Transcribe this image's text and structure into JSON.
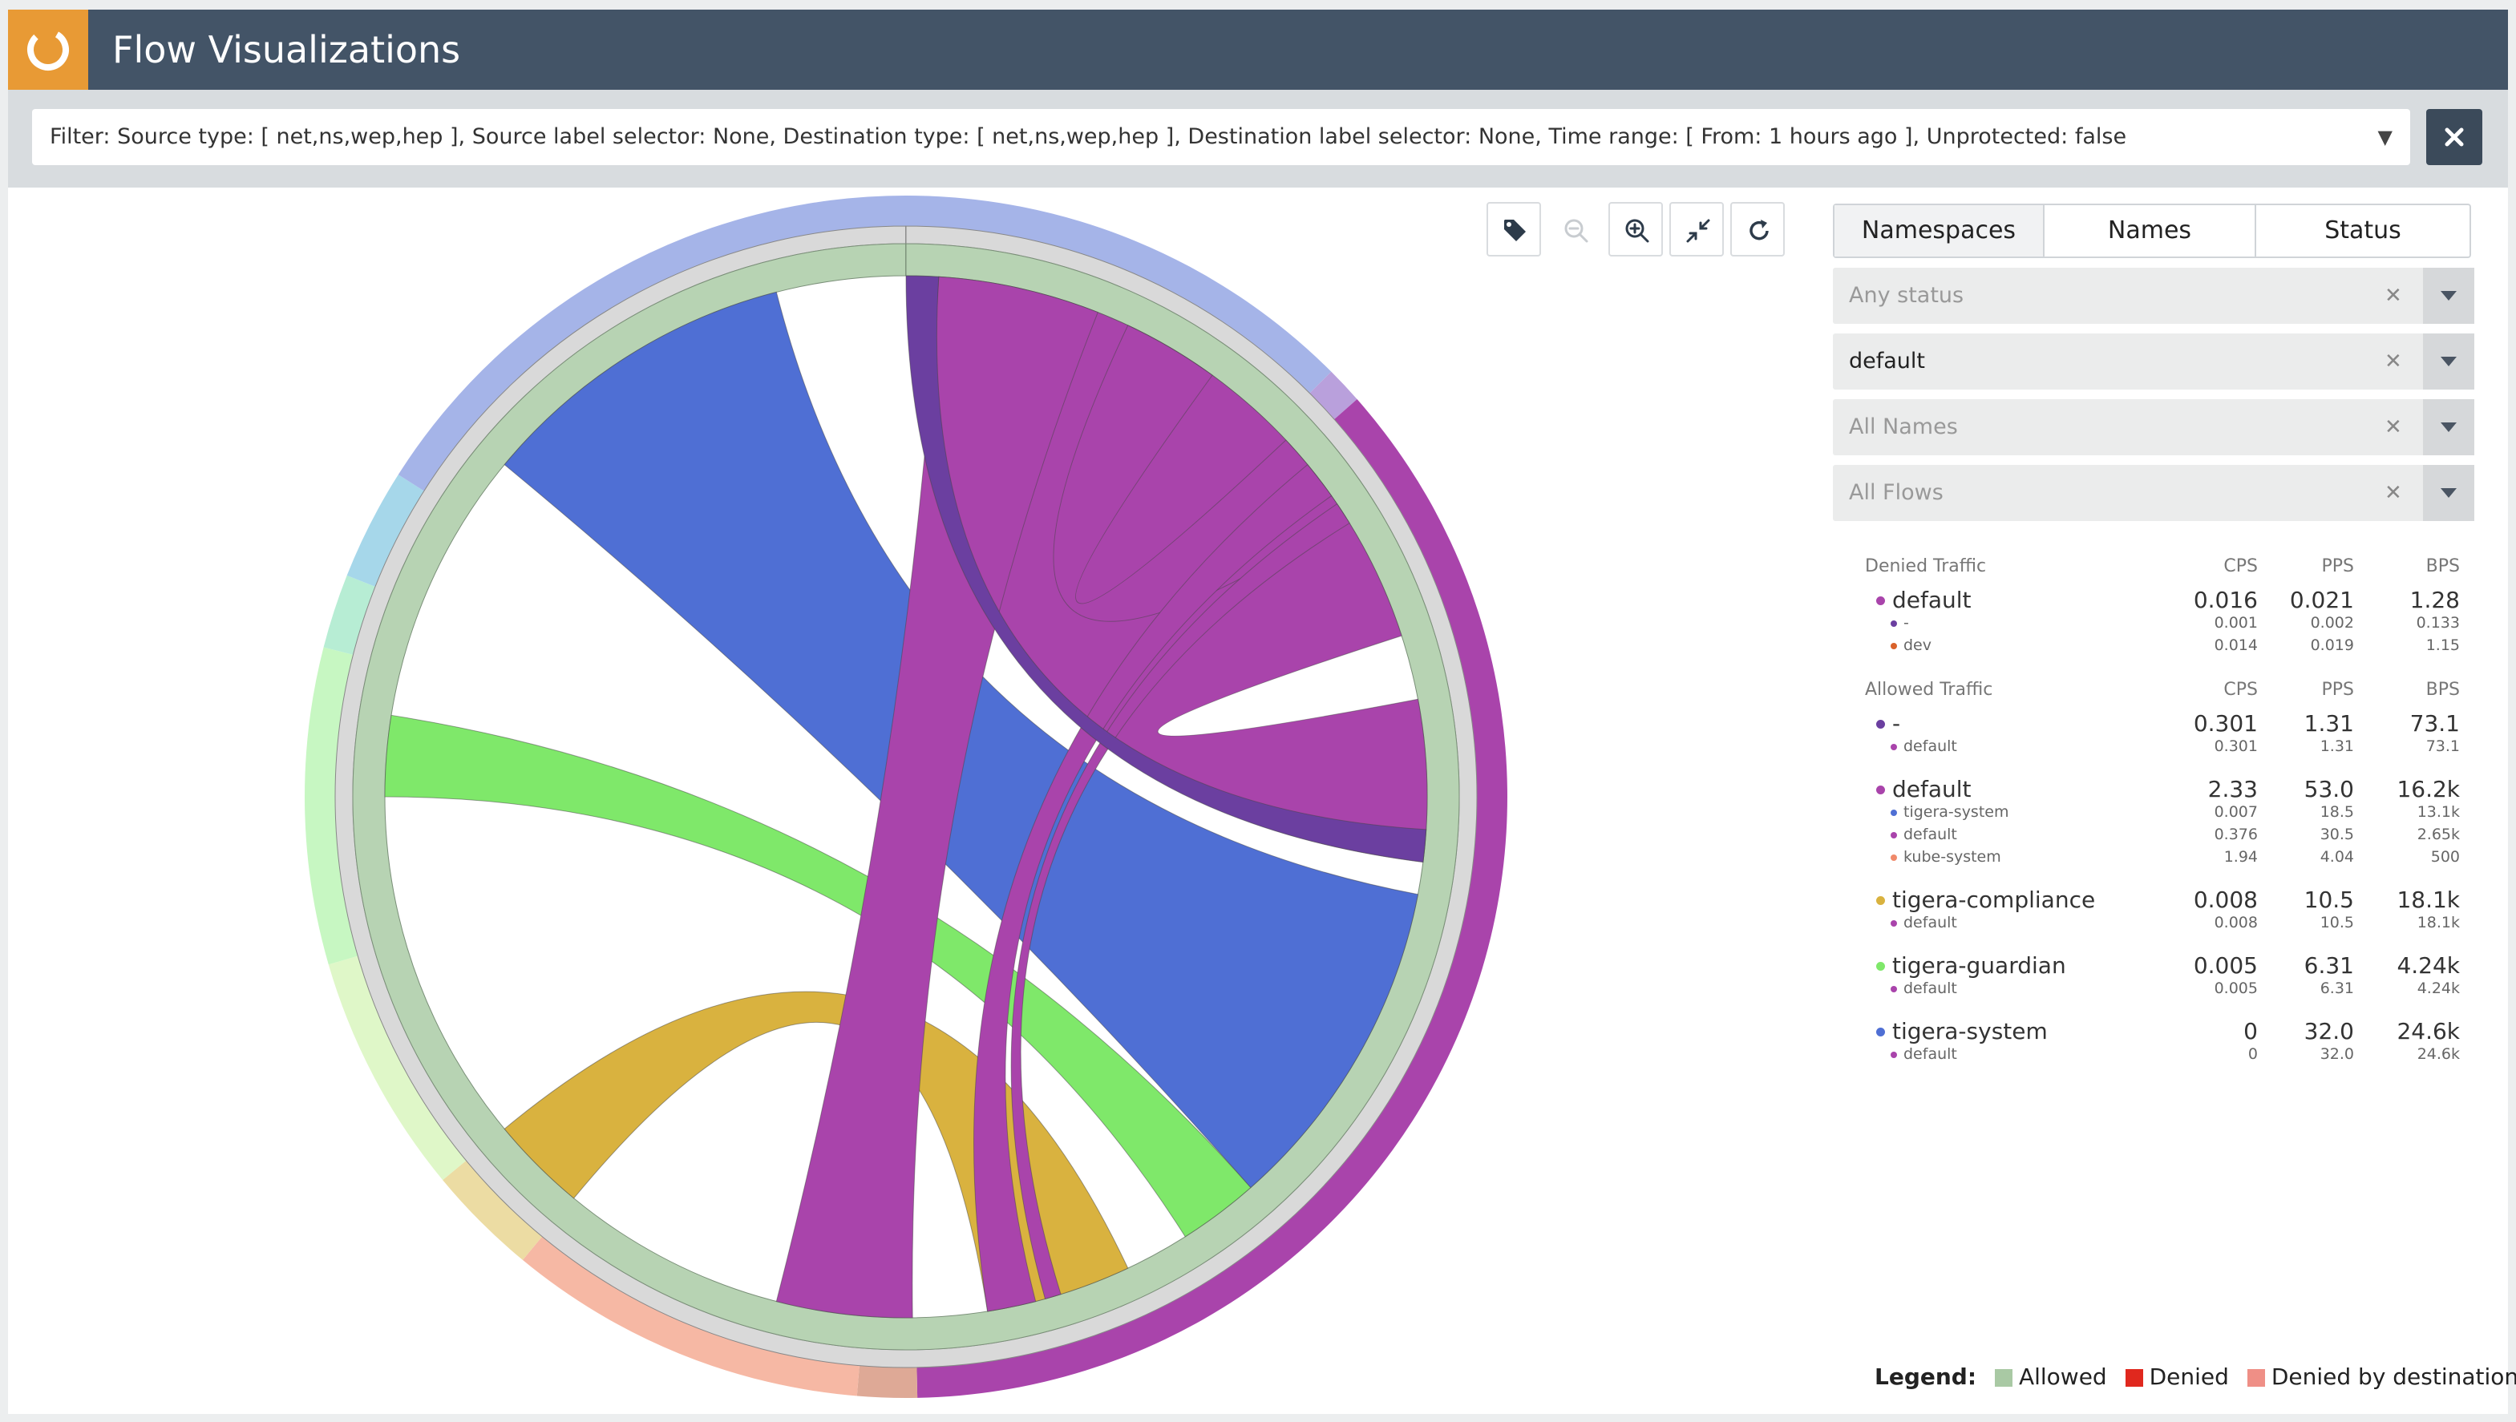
{
  "header": {
    "title": "Flow Visualizations"
  },
  "filter": {
    "text": "Filter: Source type: [ net,ns,wep,hep ], Source label selector: None, Destination type: [ net,ns,wep,hep ], Destination label selector: None, Time range: [ From: 1 hours ago ], Unprotected: false"
  },
  "toolbar": {
    "icons": [
      "tag-icon",
      "zoom-out-icon",
      "zoom-in-icon",
      "collapse-icon",
      "refresh-icon"
    ]
  },
  "tabs": [
    {
      "label": "Namespaces",
      "active": true
    },
    {
      "label": "Names",
      "active": false
    },
    {
      "label": "Status",
      "active": false
    }
  ],
  "dropdowns": [
    {
      "text": "Any status",
      "placeholder": true
    },
    {
      "text": "default",
      "placeholder": false
    },
    {
      "text": "All Names",
      "placeholder": true
    },
    {
      "text": "All Flows",
      "placeholder": true
    }
  ],
  "traffic": {
    "columns": [
      "CPS",
      "PPS",
      "BPS"
    ],
    "denied": {
      "title": "Denied Traffic",
      "groups": [
        {
          "name": "default",
          "color": "#a944ab",
          "cps": "0.016",
          "pps": "0.021",
          "bps": "1.28",
          "children": [
            {
              "name": "-",
              "color": "#6b3fa0",
              "cps": "0.001",
              "pps": "0.002",
              "bps": "0.133"
            },
            {
              "name": "dev",
              "color": "#d9622b",
              "cps": "0.014",
              "pps": "0.019",
              "bps": "1.15"
            }
          ]
        }
      ]
    },
    "allowed": {
      "title": "Allowed Traffic",
      "groups": [
        {
          "name": "-",
          "color": "#6b3fa0",
          "cps": "0.301",
          "pps": "1.31",
          "bps": "73.1",
          "children": [
            {
              "name": "default",
              "color": "#a944ab",
              "cps": "0.301",
              "pps": "1.31",
              "bps": "73.1"
            }
          ]
        },
        {
          "name": "default",
          "color": "#a944ab",
          "cps": "2.33",
          "pps": "53.0",
          "bps": "16.2k",
          "children": [
            {
              "name": "tigera-system",
              "color": "#4f6fd4",
              "cps": "0.007",
              "pps": "18.5",
              "bps": "13.1k"
            },
            {
              "name": "default",
              "color": "#a944ab",
              "cps": "0.376",
              "pps": "30.5",
              "bps": "2.65k"
            },
            {
              "name": "kube-system",
              "color": "#f0896a",
              "cps": "1.94",
              "pps": "4.04",
              "bps": "500"
            }
          ]
        },
        {
          "name": "tigera-compliance",
          "color": "#d9b23f",
          "cps": "0.008",
          "pps": "10.5",
          "bps": "18.1k",
          "children": [
            {
              "name": "default",
              "color": "#a944ab",
              "cps": "0.008",
              "pps": "10.5",
              "bps": "18.1k"
            }
          ]
        },
        {
          "name": "tigera-guardian",
          "color": "#7fe86a",
          "cps": "0.005",
          "pps": "6.31",
          "bps": "4.24k",
          "children": [
            {
              "name": "default",
              "color": "#a944ab",
              "cps": "0.005",
              "pps": "6.31",
              "bps": "4.24k"
            }
          ]
        },
        {
          "name": "tigera-system",
          "color": "#4f6fd4",
          "cps": "0",
          "pps": "32.0",
          "bps": "24.6k",
          "children": [
            {
              "name": "default",
              "color": "#a944ab",
              "cps": "0",
              "pps": "32.0",
              "bps": "24.6k"
            }
          ]
        }
      ]
    }
  },
  "legend": {
    "label": "Legend:",
    "items": [
      {
        "label": "Allowed",
        "color": "#a9c9a4"
      },
      {
        "label": "Denied",
        "color": "#e0281e"
      },
      {
        "label": "Denied by destination",
        "color": "#ef8f86"
      }
    ]
  },
  "chart_data": {
    "type": "chord",
    "outer_segments": [
      {
        "color": "#a5b4e8",
        "start": 0.0,
        "end": 0.125
      },
      {
        "color": "#b9a0dc",
        "start": 0.125,
        "end": 0.135
      },
      {
        "color": "#a944ab",
        "start": 0.135,
        "end": 0.497
      },
      {
        "color": "#dea996",
        "start": 0.497,
        "end": 0.513
      },
      {
        "color": "#f6b8a4",
        "start": 0.513,
        "end": 0.61
      },
      {
        "color": "#ecdca3",
        "start": 0.61,
        "end": 0.64
      },
      {
        "color": "#dff7c8",
        "start": 0.64,
        "end": 0.705
      },
      {
        "color": "#c7f7c2",
        "start": 0.705,
        "end": 0.79
      },
      {
        "color": "#b7edd4",
        "start": 0.79,
        "end": 0.81
      },
      {
        "color": "#a6d7ea",
        "start": 0.81,
        "end": 0.84
      },
      {
        "color": "#a5b4e8",
        "start": 0.84,
        "end": 1.0
      }
    ],
    "ribbons": [
      {
        "color": "#4f6fd4",
        "a": [
          0.86,
          0.96
        ],
        "b": [
          0.28,
          0.385
        ]
      },
      {
        "color": "#a944ab",
        "a": [
          0.01,
          0.2
        ],
        "b": [
          0.22,
          0.27
        ]
      },
      {
        "color": "#a944ab",
        "a": [
          0.07,
          0.1
        ],
        "b": [
          0.13,
          0.16
        ]
      },
      {
        "color": "#7fe86a",
        "a": [
          0.75,
          0.775
        ],
        "b": [
          0.385,
          0.41
        ]
      },
      {
        "color": "#d9b23f",
        "a": [
          0.61,
          0.64
        ],
        "b": [
          0.43,
          0.475
        ]
      },
      {
        "color": "#a944ab",
        "a": [
          0.498,
          0.54
        ],
        "b": [
          0.01,
          0.06
        ]
      },
      {
        "color": "#a944ab",
        "a": [
          0.46,
          0.475
        ],
        "b": [
          0.14,
          0.152
        ]
      },
      {
        "color": "#a944ab",
        "a": [
          0.452,
          0.457
        ],
        "b": [
          0.155,
          0.162
        ]
      },
      {
        "color": "#6b3fa0",
        "a": [
          0.0,
          0.01
        ],
        "b": [
          0.26,
          0.27
        ]
      }
    ]
  }
}
